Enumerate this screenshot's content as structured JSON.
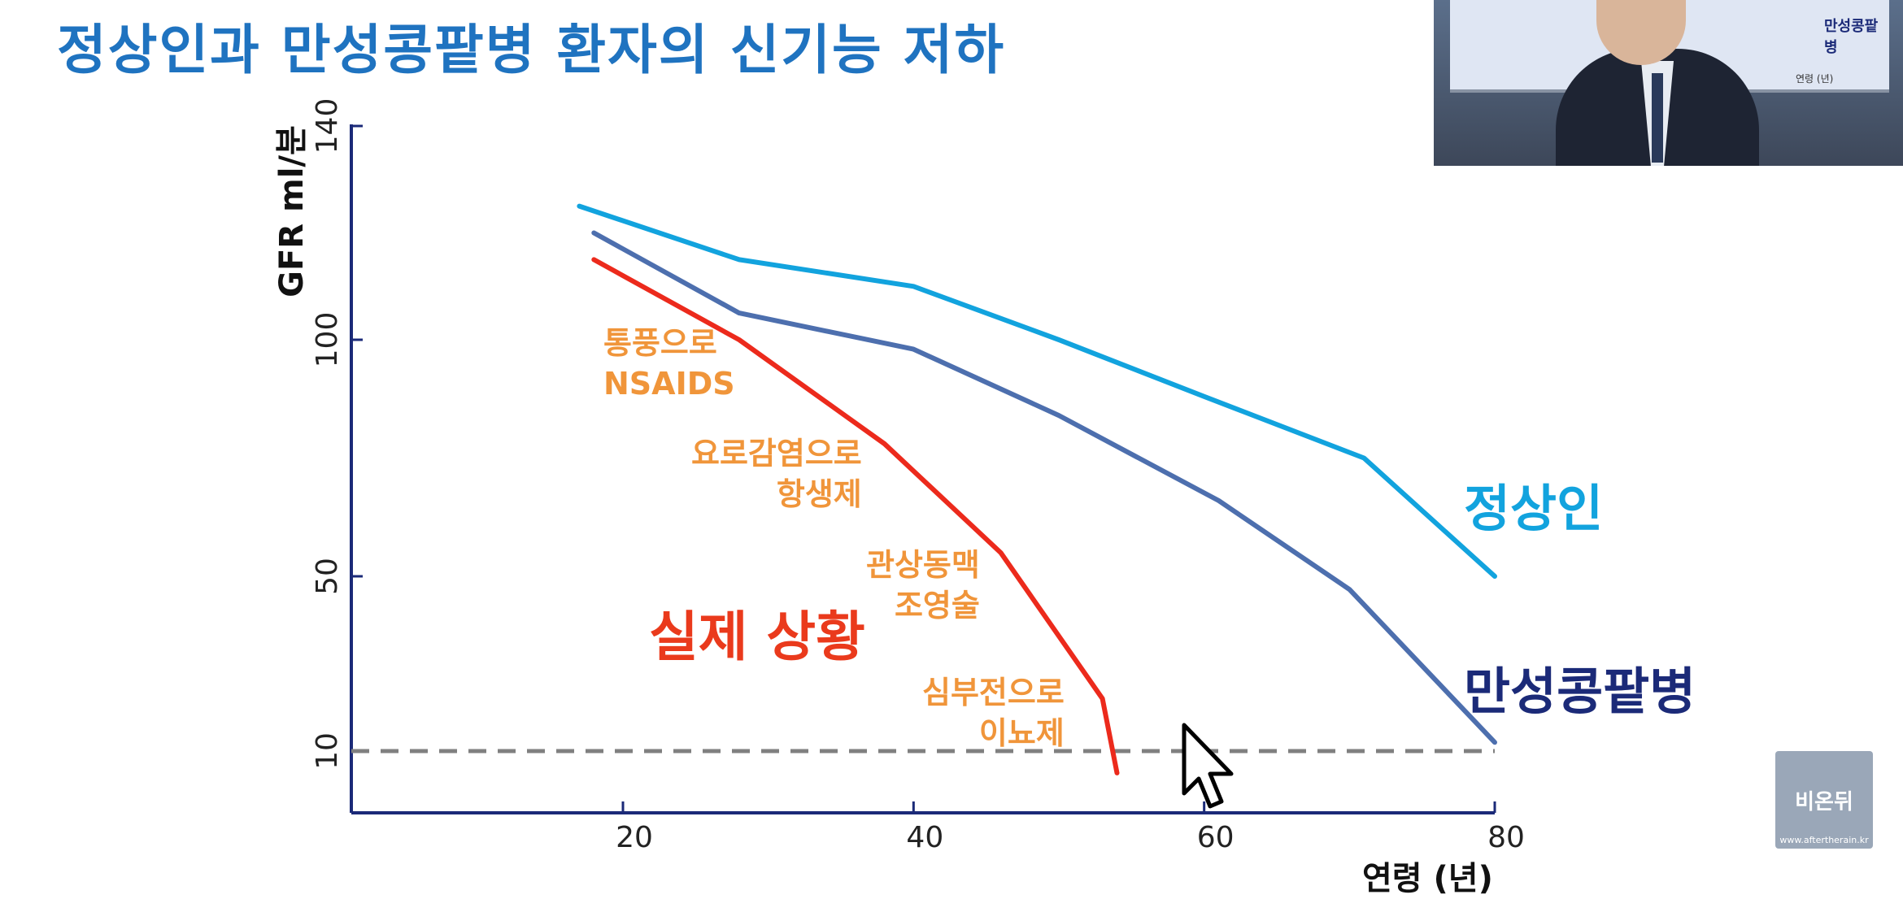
{
  "slide": {
    "title": "정상인과 만성콩팥병 환자의 신기능 저하"
  },
  "colors": {
    "title": "#1f73c0",
    "normal": "#12a3de",
    "ckd": "#4d6fae",
    "actual": "#ec2a1c",
    "annotation": "#f0953a",
    "ckd_label": "#1b2a78",
    "actual_label": "#ea3a1c",
    "axis": "#1b2a78",
    "threshold": "#808080"
  },
  "chart_data": {
    "type": "line",
    "ylabel": "GFR ml/분",
    "xlabel": "연령 (년)",
    "x_ticks": [
      20,
      40,
      60,
      80
    ],
    "y_ticks": [
      {
        "value": 10,
        "label": "10"
      },
      {
        "value": 50,
        "label": "50"
      },
      {
        "value": 100,
        "label": "100"
      },
      {
        "value": 140,
        "label": "140"
      }
    ],
    "series": [
      {
        "name": "정상인",
        "points": [
          [
            17,
            125
          ],
          [
            28,
            115
          ],
          [
            40,
            110
          ],
          [
            50,
            100
          ],
          [
            60,
            88
          ],
          [
            71,
            75
          ],
          [
            80,
            50
          ]
        ]
      },
      {
        "name": "만성콩팥병",
        "points": [
          [
            18,
            120
          ],
          [
            28,
            105
          ],
          [
            40,
            98
          ],
          [
            50,
            84
          ],
          [
            61,
            66
          ],
          [
            70,
            47
          ],
          [
            80,
            12
          ]
        ]
      },
      {
        "name": "실제 상황",
        "points": [
          [
            18,
            115
          ],
          [
            28,
            100
          ],
          [
            38,
            78
          ],
          [
            46,
            55
          ],
          [
            53,
            22
          ],
          [
            54,
            5
          ]
        ]
      }
    ],
    "reference_line": {
      "y": 10
    },
    "annotations": [
      {
        "lines": [
          "통풍으로",
          "NSAIDS"
        ]
      },
      {
        "lines": [
          "요로감염으로",
          "항생제"
        ]
      },
      {
        "lines": [
          "관상동맥",
          "조영술"
        ]
      },
      {
        "lines": [
          "심부전으로",
          "이뇨제"
        ]
      }
    ]
  },
  "logo": {
    "text": "비온뒤",
    "url": "www.aftertherain.kr"
  },
  "webcam": {
    "screen_label": "만성콩팥병",
    "screen_axis": "연령 (년)"
  }
}
